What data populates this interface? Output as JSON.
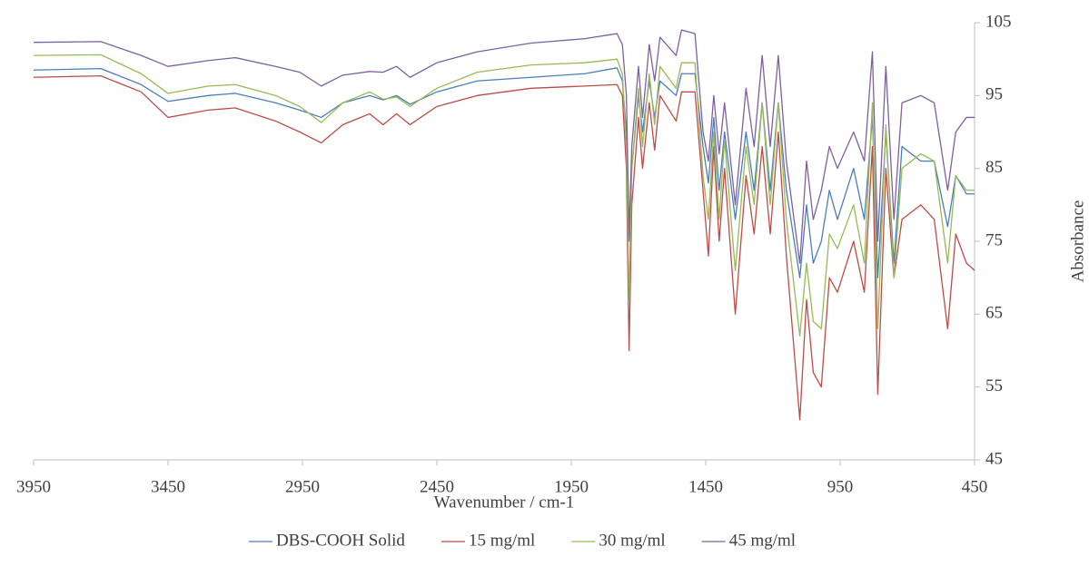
{
  "chart_data": {
    "type": "line",
    "x_label": "Wavenumber / cm-1",
    "y_label": "Absorbance",
    "xlim": [
      3950,
      450
    ],
    "xticks": [
      3950,
      3450,
      2950,
      2450,
      1950,
      1450,
      950,
      450
    ],
    "ylim": [
      45,
      105
    ],
    "yticks": [
      45,
      55,
      65,
      75,
      85,
      95,
      105
    ],
    "y_axis_side": "right",
    "grid": false,
    "legend": "bottom",
    "x": [
      3950,
      3700,
      3550,
      3450,
      3300,
      3200,
      3050,
      2960,
      2880,
      2800,
      2700,
      2650,
      2600,
      2550,
      2450,
      2300,
      2100,
      1900,
      1780,
      1760,
      1745,
      1735,
      1725,
      1700,
      1685,
      1660,
      1640,
      1620,
      1560,
      1540,
      1490,
      1460,
      1440,
      1420,
      1400,
      1380,
      1340,
      1300,
      1270,
      1240,
      1210,
      1180,
      1150,
      1100,
      1075,
      1050,
      1020,
      990,
      960,
      900,
      860,
      830,
      810,
      780,
      750,
      720,
      650,
      600,
      550,
      520,
      480,
      450
    ],
    "series": [
      {
        "name": "DBS-COOH Solid",
        "color": "#4a7ebb",
        "values": [
          98.5,
          98.7,
          96.5,
          94.2,
          95,
          95.3,
          94,
          93,
          92,
          94,
          95,
          94.4,
          95,
          93.8,
          95.5,
          97,
          97.5,
          98,
          98.8,
          97,
          90,
          75,
          85,
          95,
          90,
          97,
          92,
          97,
          95,
          98,
          98,
          88,
          83,
          92,
          82,
          90,
          78,
          90,
          82,
          94,
          82,
          94,
          82,
          70,
          80,
          72,
          75,
          82,
          78,
          85,
          78,
          92,
          70,
          90,
          72,
          88,
          86,
          86,
          77,
          84,
          81.5,
          81.5
        ]
      },
      {
        "name": "15 mg/ml",
        "color": "#be4b48",
        "values": [
          97.5,
          97.7,
          95.5,
          92,
          93,
          93.3,
          91.5,
          90,
          88.5,
          91,
          92.5,
          91,
          92.5,
          91,
          93.5,
          95,
          96,
          96.3,
          96.5,
          95,
          85,
          60,
          80,
          92,
          85,
          94,
          87.5,
          95,
          91.5,
          95.5,
          95.5,
          82,
          73,
          88,
          75,
          85,
          65,
          84,
          76,
          88,
          76,
          90,
          73,
          50.5,
          67,
          57,
          55,
          70,
          68,
          75,
          68,
          88,
          54,
          85,
          70,
          78,
          80,
          78,
          63,
          76,
          72,
          71
        ]
      },
      {
        "name": "30 mg/ml",
        "color": "#98b954",
        "values": [
          100.5,
          100.6,
          98,
          95.3,
          96.3,
          96.5,
          95,
          93.5,
          91.3,
          94,
          95.5,
          94.5,
          94.8,
          93.5,
          96,
          98.2,
          99.2,
          99.5,
          100,
          98,
          88,
          67,
          85,
          96,
          88,
          98,
          91,
          99,
          96,
          99.5,
          99.5,
          84,
          78,
          90,
          78,
          89,
          71,
          88,
          80,
          94,
          80,
          94,
          78,
          62,
          72,
          64,
          63,
          76,
          74,
          80,
          72,
          94,
          63,
          91,
          70,
          85,
          87,
          86,
          72,
          84,
          82,
          82
        ]
      },
      {
        "name": "45 mg/ml",
        "color": "#7d60a0",
        "values": [
          102.3,
          102.4,
          100.5,
          99,
          99.8,
          100.2,
          99,
          98.2,
          96.3,
          97.8,
          98.3,
          98.2,
          99,
          97.5,
          99.5,
          101,
          102.2,
          102.8,
          103.5,
          102,
          95,
          76,
          88,
          99,
          92,
          102,
          97,
          103,
          100.5,
          104,
          103.5,
          90,
          86,
          95,
          87,
          94,
          80,
          96,
          88,
          100.5,
          88,
          100.5,
          86,
          72,
          86,
          78,
          82,
          88,
          85,
          90,
          86,
          101,
          75,
          99,
          78,
          94,
          95,
          94,
          82,
          90,
          92,
          92
        ]
      }
    ]
  }
}
